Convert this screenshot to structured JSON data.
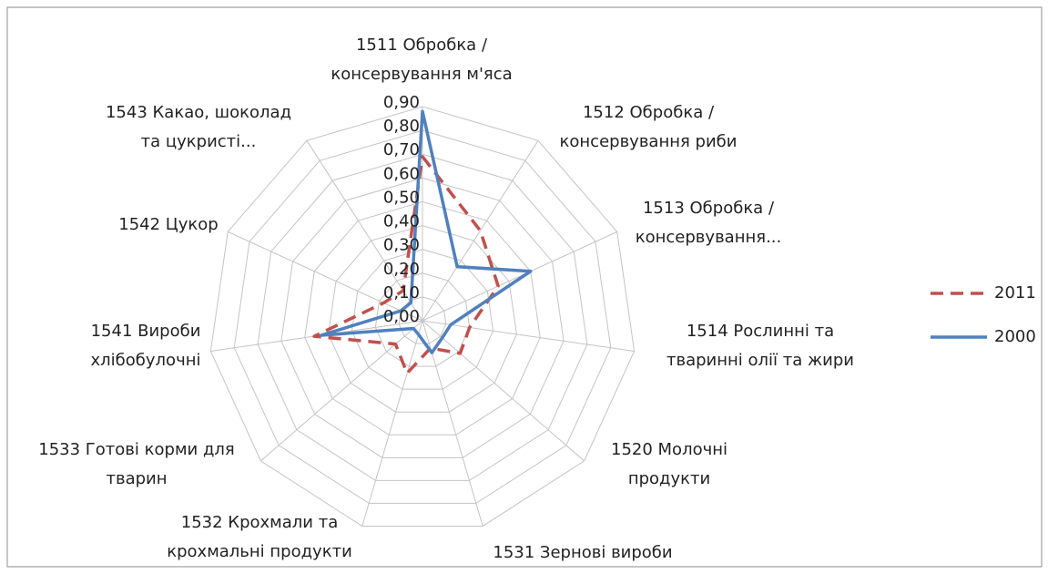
{
  "chart_data": {
    "type": "radar",
    "categories": [
      "1511 Обробка /\nконсервування м'яса",
      "1512 Обробка /\nконсервування риби",
      "1513 Обробка /\nконсервування...",
      "1514 Рослинні та\nтваринні олії та жири",
      "1520 Молочні\nпродукти",
      "1531 Зернові вироби",
      "1532 Крохмали та\nкрохмальні продукти",
      "1533 Готові корми для\nтварин",
      "1541 Вироби\nхлібобулочні",
      "1542 Цукор",
      "1543 Какао, шоколад\nта цукристі..."
    ],
    "series": [
      {
        "name": "2011",
        "color": "#c0504d",
        "dashed": true,
        "values": [
          0.69,
          0.45,
          0.35,
          0.2,
          0.21,
          0.12,
          0.23,
          0.15,
          0.46,
          0.18,
          0.15
        ]
      },
      {
        "name": "2000",
        "color": "#4f81bd",
        "dashed": false,
        "values": [
          0.88,
          0.27,
          0.5,
          0.12,
          0.11,
          0.14,
          0.06,
          0.05,
          0.43,
          0.1,
          0.09
        ]
      }
    ],
    "ylim": [
      0,
      0.9
    ],
    "yticks": [
      {
        "value": 0,
        "label": "0,00"
      },
      {
        "value": 0.1,
        "label": "0,10"
      },
      {
        "value": 0.2,
        "label": "0,20"
      },
      {
        "value": 0.3,
        "label": "0,30"
      },
      {
        "value": 0.4,
        "label": "0,40"
      },
      {
        "value": 0.5,
        "label": "0,50"
      },
      {
        "value": 0.6,
        "label": "0,60"
      },
      {
        "value": 0.7,
        "label": "0,70"
      },
      {
        "value": 0.8,
        "label": "0,80"
      },
      {
        "value": 0.9,
        "label": "0,90"
      }
    ],
    "grid": true,
    "legend": "right"
  }
}
